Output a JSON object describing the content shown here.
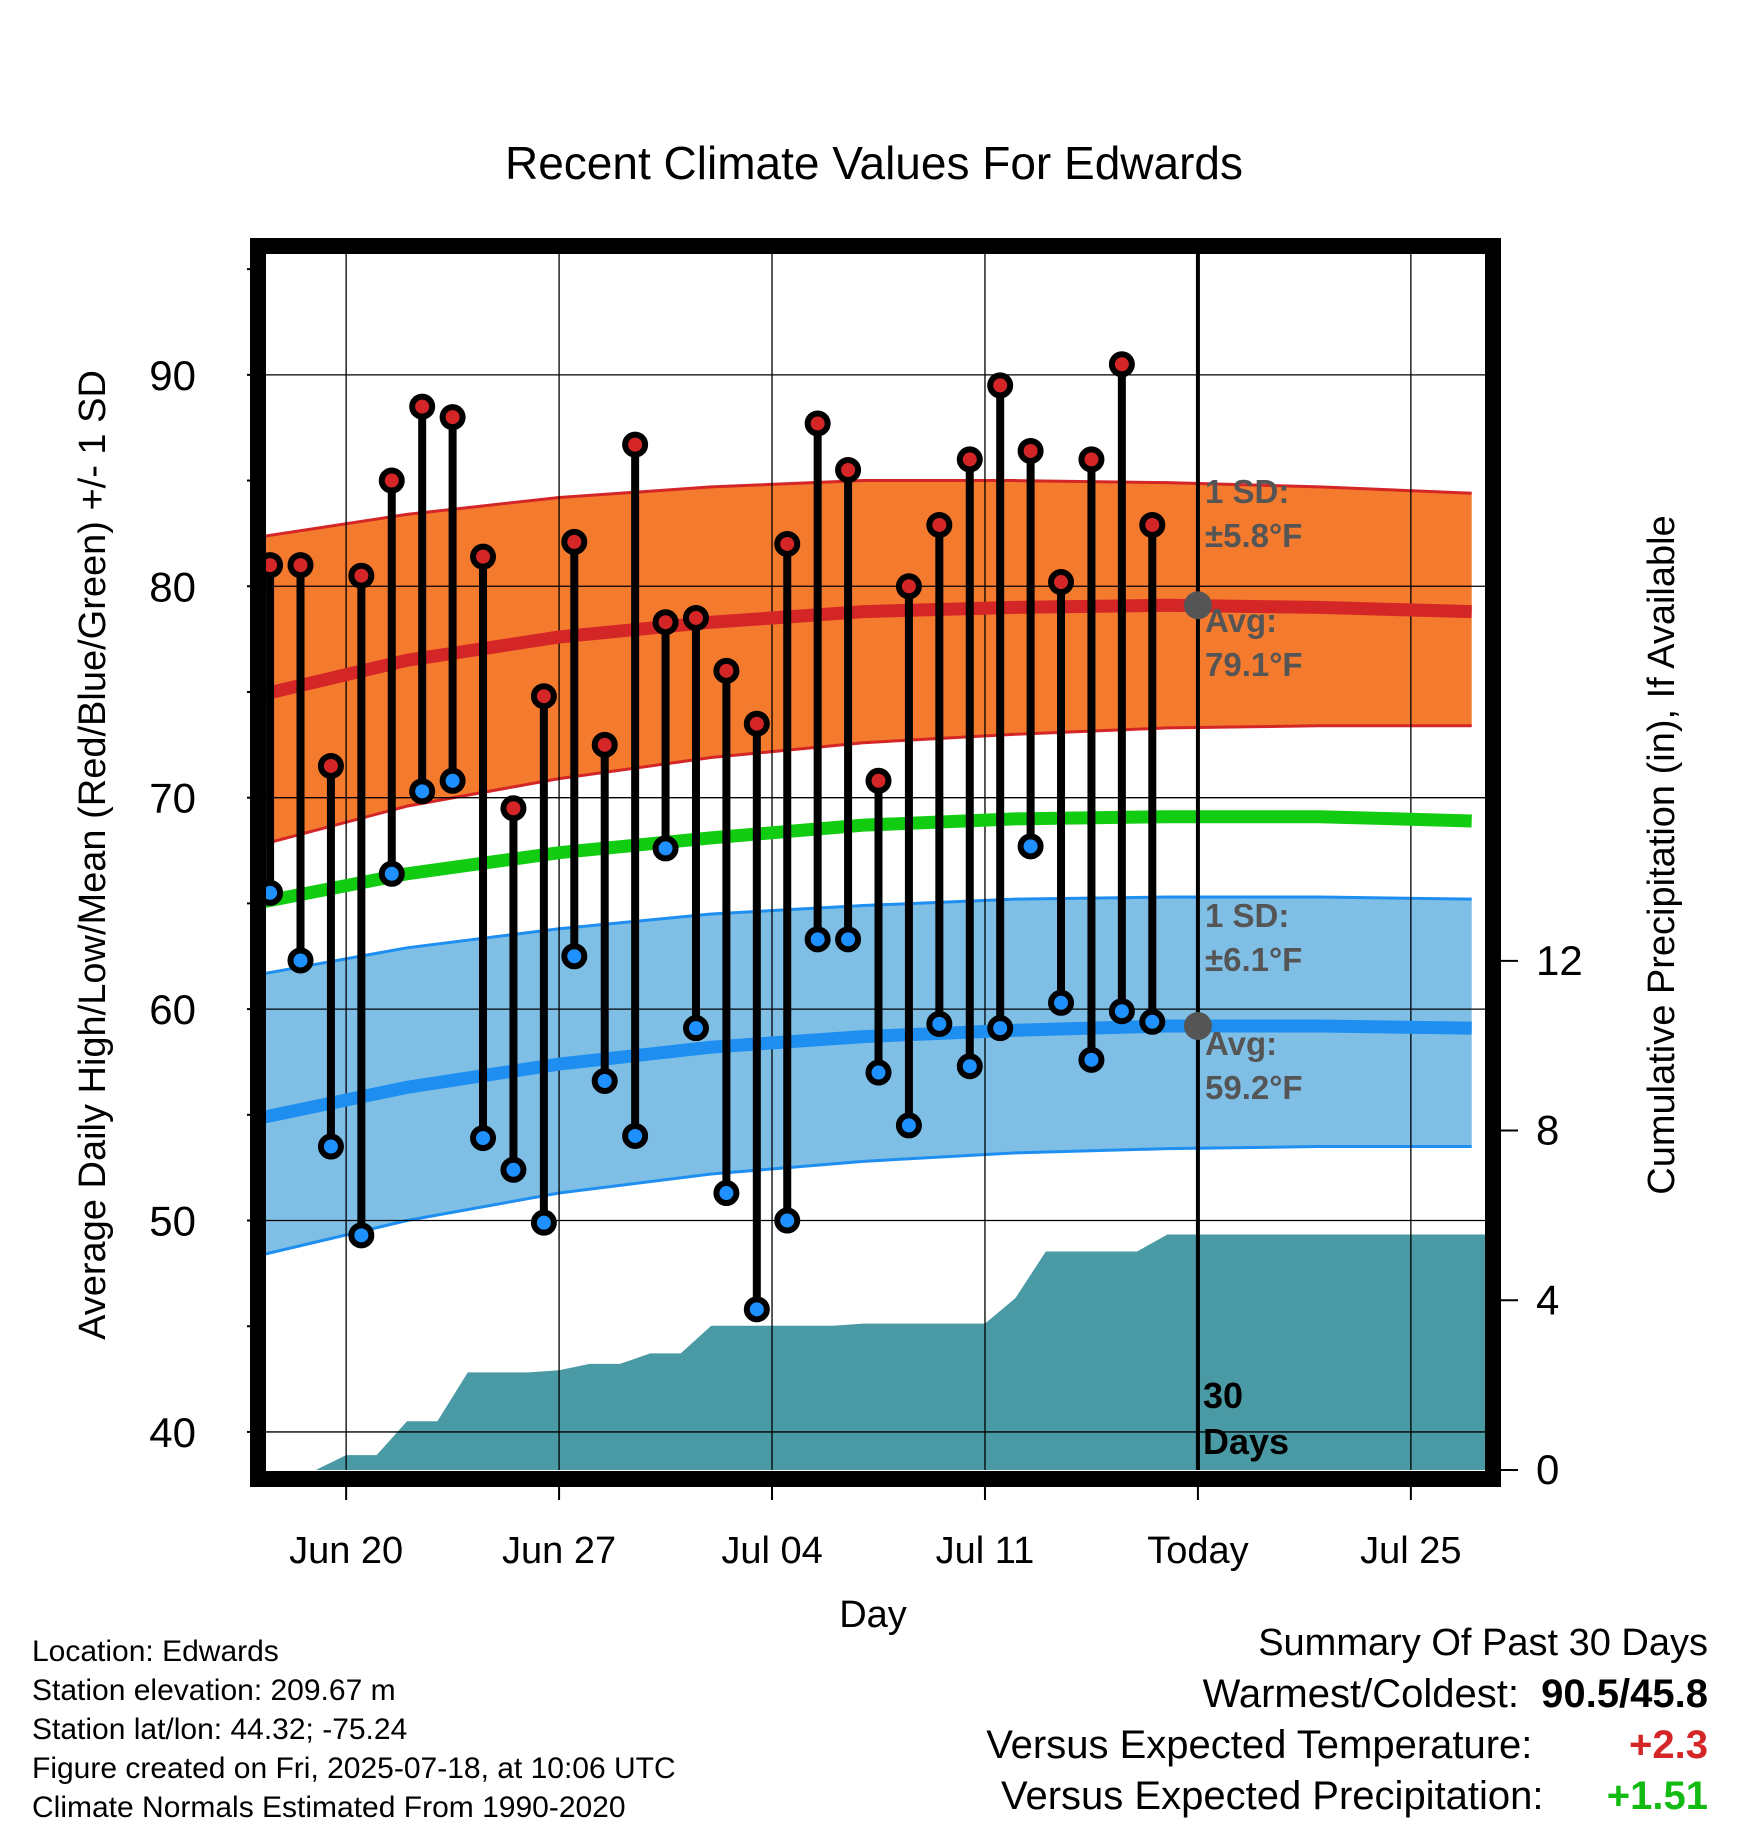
{
  "title": "Recent Climate Values For Edwards",
  "xlabel": "Day",
  "ylabel_left": "Average Daily High/Low/Mean (Red/Blue/Green) +/- 1 SD",
  "ylabel_right": "Cumulative Precipitation (in), If Available",
  "colors": {
    "high_point": "#d42626",
    "low_point": "#1e90ff",
    "high_band": "#f47a2e",
    "high_avg": "#d42626",
    "low_band": "#7fbfe6",
    "low_avg": "#1e8ff0",
    "mean_line": "#11cc11",
    "precip": "#4a9aa5",
    "annotation": "#555555"
  },
  "annotations": {
    "high_sd": "1 SD:",
    "high_sd_val": "±5.8°F",
    "high_avg": "Avg:",
    "high_avg_val": "79.1°F",
    "low_sd": "1 SD:",
    "low_sd_val": "±6.1°F",
    "low_avg": "Avg:",
    "low_avg_val": "59.2°F",
    "days_line1": "30",
    "days_line2": "Days"
  },
  "info": {
    "location": "Location: Edwards",
    "elevation": "Station elevation: 209.67 m",
    "latlon": "Station lat/lon: 44.32; -75.24",
    "created": "Figure created on Fri, 2025-07-18, at 10:06 UTC",
    "normals": "Climate Normals Estimated From 1990-2020"
  },
  "summary": {
    "title": "Summary Of Past 30 Days",
    "warm_cold_label": "Warmest/Coldest:",
    "warm_cold_value": "90.5/45.8",
    "temp_label": "Versus Expected Temperature:",
    "temp_value": "+2.3",
    "temp_color": "#d42626",
    "precip_label": "Versus Expected Precipitation:",
    "precip_value": "+1.51",
    "precip_color": "#11bb11"
  },
  "chart_data": {
    "type": "line",
    "x_ticks": [
      "Jun 20",
      "Jun 27",
      "Jul 04",
      "Jul 11",
      "Today",
      "Jul 25"
    ],
    "x_tick_days": [
      2,
      9,
      16,
      23,
      30,
      37
    ],
    "x_range": [
      -0.7,
      39.7
    ],
    "ylim": [
      38.2,
      96
    ],
    "y_ticks": [
      40,
      50,
      60,
      70,
      80,
      90
    ],
    "y2lim": [
      0,
      28.8
    ],
    "y2_ticks": [
      0,
      4,
      8,
      12
    ],
    "days": [
      -0.5,
      0.5,
      1.5,
      2.5,
      3.5,
      4.5,
      5.5,
      6.5,
      7.5,
      8.5,
      9.5,
      10.5,
      11.5,
      12.5,
      13.5,
      14.5,
      15.5,
      16.5,
      17.5,
      18.5,
      19.5,
      20.5,
      21.5,
      22.5,
      23.5,
      24.5,
      25.5,
      26.5,
      27.5,
      28.5
    ],
    "highs": [
      81.0,
      81.0,
      71.5,
      80.5,
      85.0,
      88.5,
      88.0,
      81.4,
      69.5,
      74.8,
      82.1,
      72.5,
      86.7,
      78.3,
      78.5,
      76.0,
      73.5,
      82.0,
      87.7,
      85.5,
      70.8,
      80.0,
      82.9,
      86.0,
      89.5,
      86.4,
      80.2,
      86.0,
      90.5,
      82.9
    ],
    "lows": [
      65.5,
      62.3,
      53.5,
      49.3,
      66.4,
      70.3,
      70.8,
      53.9,
      52.4,
      49.9,
      62.5,
      56.6,
      54.0,
      67.6,
      59.1,
      51.3,
      45.8,
      50.0,
      63.3,
      63.3,
      57.0,
      54.5,
      59.3,
      57.3,
      59.1,
      67.7,
      60.3,
      57.6,
      59.9,
      59.4
    ],
    "normals_x": [
      -1,
      4,
      9,
      14,
      19,
      24,
      29,
      34,
      39
    ],
    "normal_high": [
      74.8,
      76.5,
      77.6,
      78.3,
      78.8,
      79.0,
      79.1,
      79.0,
      78.8
    ],
    "normal_high_sd_upper": [
      82.3,
      83.4,
      84.2,
      84.7,
      85.0,
      85.0,
      84.9,
      84.7,
      84.4
    ],
    "normal_high_sd_lower": [
      67.7,
      69.6,
      70.9,
      71.9,
      72.6,
      73.0,
      73.3,
      73.4,
      73.4
    ],
    "normal_mean": [
      65.0,
      66.4,
      67.4,
      68.1,
      68.7,
      69.0,
      69.1,
      69.1,
      68.9
    ],
    "normal_low": [
      54.8,
      56.3,
      57.4,
      58.2,
      58.7,
      59.0,
      59.2,
      59.2,
      59.1
    ],
    "normal_low_sd_upper": [
      61.6,
      62.9,
      63.8,
      64.5,
      64.9,
      65.2,
      65.3,
      65.3,
      65.2
    ],
    "normal_low_sd_lower": [
      48.3,
      50.0,
      51.3,
      52.2,
      52.8,
      53.2,
      53.4,
      53.5,
      53.5
    ],
    "precip_x": [
      -1,
      1,
      2,
      3,
      4,
      5,
      6,
      8,
      9,
      10,
      11,
      12,
      13,
      14,
      15,
      16,
      17,
      18,
      19,
      20,
      21,
      22,
      23,
      24,
      25,
      26,
      27,
      28,
      29,
      39.7
    ],
    "precip_in": [
      0,
      0,
      0.35,
      0.35,
      1.15,
      1.15,
      2.3,
      2.3,
      2.35,
      2.5,
      2.5,
      2.75,
      2.75,
      3.4,
      3.4,
      3.4,
      3.4,
      3.4,
      3.45,
      3.45,
      3.45,
      3.45,
      3.45,
      4.05,
      5.15,
      5.15,
      5.15,
      5.15,
      5.55,
      5.55
    ]
  }
}
